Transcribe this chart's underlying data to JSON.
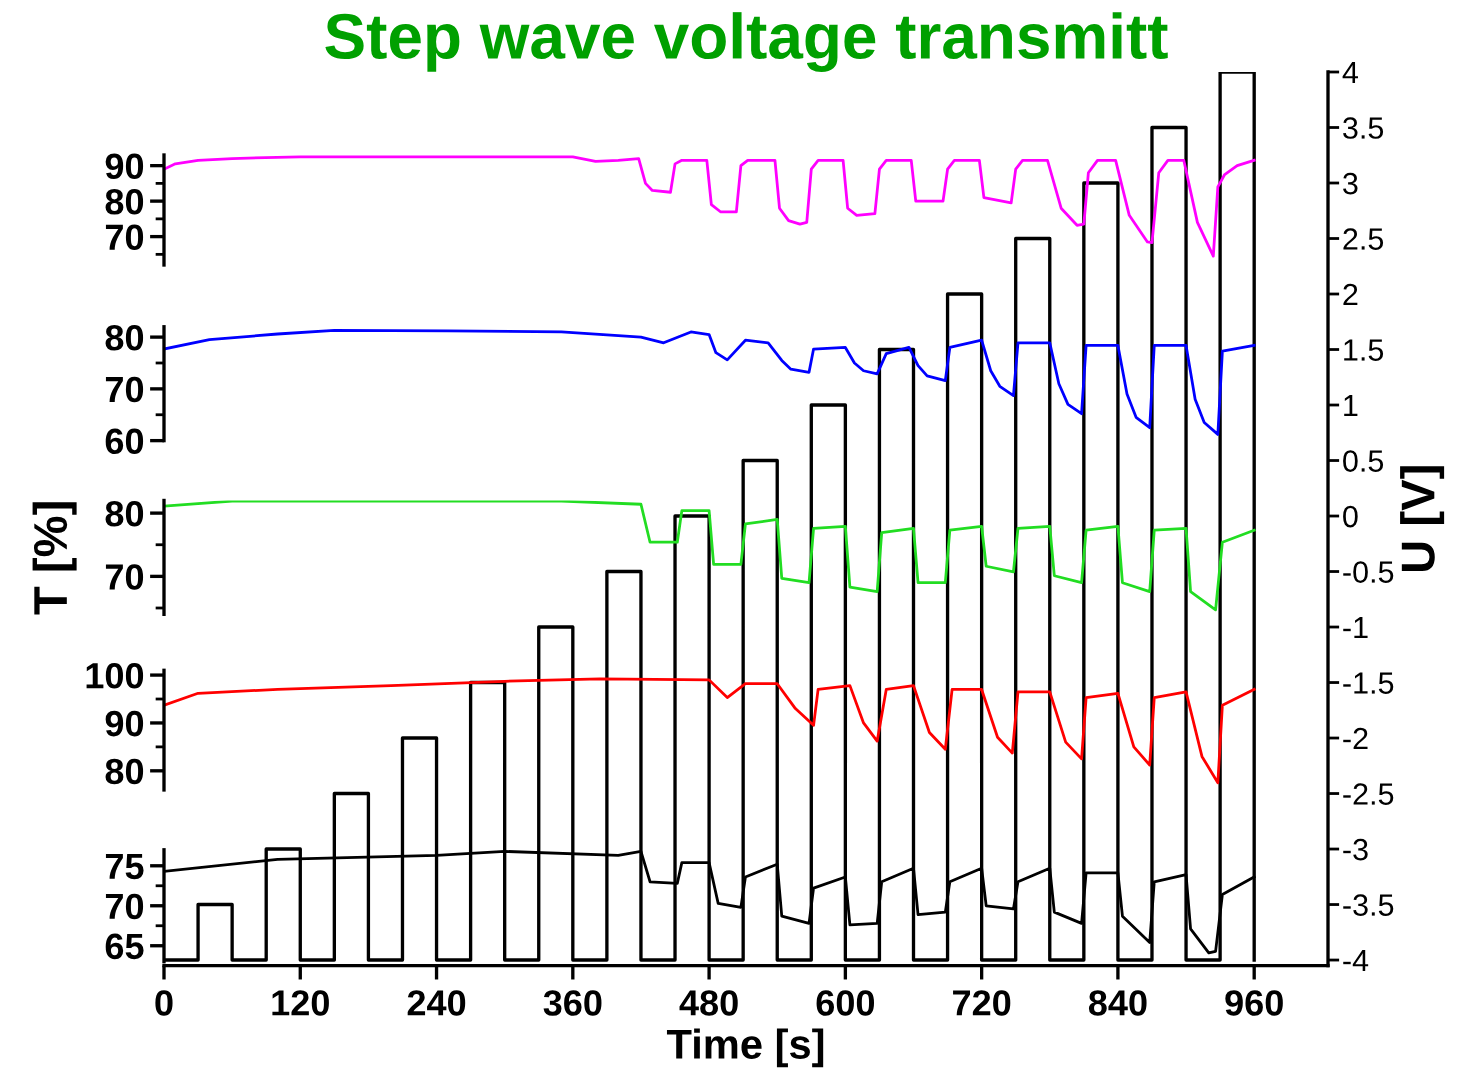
{
  "chart_data": [
    {
      "type": "step",
      "title": "Step wave voltage transmitt",
      "xlabel": "Time [s]",
      "y2label": "U [V]",
      "x": [
        0,
        30,
        60,
        90,
        120,
        150,
        180,
        210,
        240,
        270,
        300,
        330,
        360,
        390,
        420,
        450,
        480,
        510,
        540,
        570,
        600,
        630,
        660,
        690,
        720,
        750,
        780,
        810,
        840,
        870,
        900,
        930,
        960
      ],
      "series": [
        {
          "color": "#000000",
          "axis": "y2",
          "values": [
            -4,
            -3.5,
            -4,
            -3,
            -4,
            -2.5,
            -4,
            -2,
            -4,
            -1.5,
            -4,
            -1,
            -4,
            -0.5,
            -4,
            0,
            -4,
            0.5,
            -4,
            1,
            -4,
            1.5,
            -4,
            2,
            -4,
            2.5,
            -4,
            3,
            -4,
            3.5,
            -4,
            4,
            -4
          ]
        }
      ],
      "xlim": [
        0,
        1025
      ],
      "xticks": [
        0,
        120,
        240,
        360,
        480,
        600,
        720,
        840,
        960
      ],
      "y2lim": [
        -4.05,
        4
      ],
      "y2ticks": [
        -4,
        -3.5,
        -3,
        -2.5,
        -2,
        -1.5,
        -1,
        -0.5,
        0,
        0.5,
        1,
        1.5,
        2,
        2.5,
        3,
        3.5,
        4
      ],
      "grid": false
    },
    {
      "type": "line",
      "tick_labels": "y",
      "xlim": [
        0,
        1025
      ],
      "ylim": [
        62,
        93
      ],
      "yticks": [
        70,
        80,
        90
      ],
      "series": [
        {
          "color": "#ff00ff",
          "x": [
            0,
            10,
            30,
            60,
            120,
            200,
            300,
            360,
            380,
            400,
            418,
            424,
            430,
            446,
            450,
            456,
            478,
            482,
            490,
            504,
            508,
            514,
            538,
            542,
            550,
            560,
            566,
            570,
            576,
            598,
            602,
            610,
            626,
            630,
            636,
            658,
            662,
            686,
            690,
            696,
            718,
            722,
            746,
            750,
            756,
            778,
            790,
            804,
            810,
            814,
            822,
            838,
            850,
            866,
            870,
            876,
            884,
            898,
            910,
            924,
            928,
            934,
            945,
            960
          ],
          "values": [
            89,
            90.5,
            91.5,
            92,
            92.5,
            92.5,
            92.5,
            92.5,
            91.2,
            91.5,
            92,
            85,
            83,
            82.5,
            90.5,
            91.5,
            91.5,
            79,
            77,
            77,
            90,
            91.5,
            91.5,
            78,
            74.5,
            73.5,
            74,
            89,
            91.5,
            91.5,
            78,
            76,
            76.5,
            89,
            91.5,
            91.5,
            80,
            80,
            89,
            91.5,
            91.5,
            81,
            79.5,
            89,
            91.5,
            91.5,
            78,
            73.2,
            73.5,
            88,
            91.5,
            91.5,
            76,
            68.5,
            68.3,
            88,
            91.5,
            91.5,
            74,
            64.5,
            84,
            87.5,
            90,
            91.5
          ]
        }
      ]
    },
    {
      "type": "line",
      "tick_labels": "y",
      "xlim": [
        0,
        1025
      ],
      "ylim": [
        60,
        82
      ],
      "yticks": [
        60,
        70,
        80
      ],
      "series": [
        {
          "color": "#0000ff",
          "x": [
            0,
            40,
            100,
            150,
            250,
            350,
            420,
            440,
            464,
            480,
            486,
            496,
            512,
            532,
            544,
            552,
            568,
            572,
            600,
            608,
            616,
            628,
            636,
            656,
            664,
            672,
            688,
            692,
            720,
            728,
            736,
            748,
            752,
            780,
            788,
            796,
            808,
            812,
            840,
            848,
            856,
            868,
            872,
            900,
            908,
            916,
            928,
            932,
            960
          ],
          "values": [
            77.7,
            79.5,
            80.6,
            81.3,
            81.2,
            81,
            80,
            78.9,
            81,
            80.5,
            77,
            75.6,
            79.4,
            78.9,
            75.5,
            73.8,
            73.2,
            77.7,
            78,
            75,
            73.5,
            72.9,
            76.8,
            78,
            74.5,
            72.5,
            71.6,
            78,
            79.4,
            73.5,
            70.5,
            68.7,
            78.9,
            78.9,
            71,
            67,
            65.2,
            78.4,
            78.4,
            69,
            64.5,
            62.5,
            78.4,
            78.4,
            68,
            63.5,
            61.2,
            77.3,
            78.4
          ]
        }
      ]
    },
    {
      "type": "line",
      "ylabel": "T [%]",
      "tick_labels": "y",
      "xlim": [
        0,
        1025
      ],
      "ylim": [
        64,
        82
      ],
      "yticks": [
        70,
        80
      ],
      "series": [
        {
          "color": "#22dd22",
          "x": [
            0,
            60,
            150,
            250,
            350,
            420,
            428,
            452,
            456,
            480,
            484,
            508,
            512,
            540,
            544,
            568,
            572,
            600,
            604,
            628,
            632,
            660,
            664,
            688,
            692,
            720,
            724,
            748,
            752,
            780,
            784,
            808,
            812,
            840,
            844,
            868,
            872,
            900,
            904,
            926,
            932,
            960
          ],
          "values": [
            81.1,
            81.9,
            81.9,
            81.9,
            81.9,
            81.4,
            75.4,
            75.4,
            80.4,
            80.4,
            71.9,
            71.9,
            78.3,
            79,
            69.7,
            69,
            77.6,
            77.9,
            68.3,
            67.6,
            76.9,
            77.6,
            69,
            69,
            77.3,
            77.9,
            71.6,
            70.7,
            77.6,
            77.9,
            70.1,
            69,
            77.3,
            77.9,
            69,
            67.6,
            77.3,
            77.6,
            67.6,
            64.7,
            75.4,
            77.3
          ]
        }
      ]
    },
    {
      "type": "line",
      "tick_labels": "y",
      "xlim": [
        0,
        1025
      ],
      "ylim": [
        76,
        101
      ],
      "yticks": [
        80,
        90,
        100
      ],
      "series": [
        {
          "color": "#ff0000",
          "x": [
            0,
            30,
            100,
            200,
            300,
            384,
            480,
            496,
            512,
            540,
            556,
            572,
            576,
            604,
            616,
            628,
            636,
            660,
            674,
            688,
            694,
            720,
            734,
            747,
            752,
            780,
            794,
            808,
            812,
            840,
            854,
            868,
            872,
            900,
            914,
            928,
            932,
            960
          ],
          "values": [
            93.7,
            96.2,
            97,
            97.8,
            98.7,
            99.2,
            99,
            95.3,
            98.2,
            98.2,
            93,
            89.5,
            97,
            97.8,
            90,
            86.2,
            97,
            97.8,
            88,
            84.5,
            97,
            97,
            87,
            83.7,
            96.5,
            96.5,
            86,
            82.5,
            95.3,
            96.2,
            85,
            81.2,
            95.3,
            96.5,
            83,
            77.5,
            93.7,
            97
          ]
        }
      ]
    },
    {
      "type": "line",
      "tick_labels": "y",
      "xlim": [
        0,
        1025
      ],
      "ylim": [
        63,
        77
      ],
      "yticks": [
        65,
        70,
        75
      ],
      "series": [
        {
          "color": "#000000",
          "x": [
            0,
            100,
            240,
            300,
            400,
            420,
            428,
            452,
            456,
            480,
            488,
            508,
            512,
            540,
            544,
            568,
            572,
            600,
            604,
            628,
            632,
            660,
            664,
            688,
            692,
            720,
            724,
            748,
            752,
            780,
            784,
            808,
            812,
            840,
            844,
            868,
            872,
            900,
            904,
            920,
            926,
            932,
            960
          ],
          "values": [
            74.3,
            75.8,
            76.3,
            76.8,
            76.3,
            76.8,
            73,
            72.8,
            75.4,
            75.4,
            70.3,
            69.8,
            73.6,
            75.2,
            68.7,
            67.8,
            72.2,
            73.6,
            67.6,
            67.8,
            73,
            74.7,
            68.9,
            69.2,
            73,
            74.7,
            70,
            69.6,
            73,
            74.7,
            69.2,
            67.8,
            74.1,
            74.1,
            68.7,
            65.4,
            73,
            73.9,
            67.1,
            64.1,
            64.3,
            71.4,
            73.6
          ]
        }
      ]
    }
  ]
}
